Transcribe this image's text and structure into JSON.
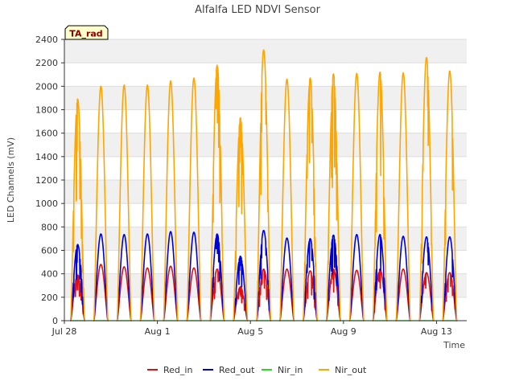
{
  "chart_data": {
    "type": "line",
    "title": "Alfalfa LED NDVI Sensor",
    "xlabel": "Time",
    "ylabel": "LED Channels (mV)",
    "badge": "TA_rad",
    "xlim": [
      0,
      17.3
    ],
    "ylim": [
      0,
      2400
    ],
    "yticks": [
      0,
      200,
      400,
      600,
      800,
      1000,
      1200,
      1400,
      1600,
      1800,
      2000,
      2200,
      2400
    ],
    "xticks": [
      {
        "label": "Jul 28",
        "day": 0
      },
      {
        "label": "Aug 1",
        "day": 4
      },
      {
        "label": "Aug 5",
        "day": 8
      },
      {
        "label": "Aug 9",
        "day": 12
      },
      {
        "label": "Aug 13",
        "day": 16
      }
    ],
    "day_peaks": [
      {
        "day": 0,
        "nir_out": 1890,
        "red_out": 650,
        "red_in": 390,
        "nir_in": 0
      },
      {
        "day": 1,
        "nir_out": 2000,
        "red_out": 740,
        "red_in": 480,
        "nir_in": 0
      },
      {
        "day": 2,
        "nir_out": 2010,
        "red_out": 735,
        "red_in": 460,
        "nir_in": 0
      },
      {
        "day": 3,
        "nir_out": 2010,
        "red_out": 740,
        "red_in": 450,
        "nir_in": 0
      },
      {
        "day": 4,
        "nir_out": 2045,
        "red_out": 760,
        "red_in": 465,
        "nir_in": 0
      },
      {
        "day": 5,
        "nir_out": 2070,
        "red_out": 755,
        "red_in": 450,
        "nir_in": 0
      },
      {
        "day": 6,
        "nir_out": 2180,
        "red_out": 740,
        "red_in": 440,
        "nir_in": 0
      },
      {
        "day": 7,
        "nir_out": 1730,
        "red_out": 550,
        "red_in": 290,
        "nir_in": 0
      },
      {
        "day": 8,
        "nir_out": 2310,
        "red_out": 770,
        "red_in": 440,
        "nir_in": 0
      },
      {
        "day": 9,
        "nir_out": 2060,
        "red_out": 705,
        "red_in": 440,
        "nir_in": 0
      },
      {
        "day": 10,
        "nir_out": 2070,
        "red_out": 700,
        "red_in": 425,
        "nir_in": 0
      },
      {
        "day": 11,
        "nir_out": 2105,
        "red_out": 730,
        "red_in": 440,
        "nir_in": 0
      },
      {
        "day": 12,
        "nir_out": 2110,
        "red_out": 735,
        "red_in": 430,
        "nir_in": 0
      },
      {
        "day": 13,
        "nir_out": 2120,
        "red_out": 735,
        "red_in": 440,
        "nir_in": 0
      },
      {
        "day": 14,
        "nir_out": 2115,
        "red_out": 720,
        "red_in": 440,
        "nir_in": 0
      },
      {
        "day": 15,
        "nir_out": 2245,
        "red_out": 715,
        "red_in": 410,
        "nir_in": 0
      },
      {
        "day": 16,
        "nir_out": 2130,
        "red_out": 715,
        "red_in": 410,
        "nir_in": 0
      }
    ],
    "series": [
      {
        "name": "Red_in",
        "key": "red_in",
        "color": "#dd1111"
      },
      {
        "name": "Red_out",
        "key": "red_out",
        "color": "#0000dd"
      },
      {
        "name": "Nir_in",
        "key": "nir_in",
        "color": "#22dd22"
      },
      {
        "name": "Nir_out",
        "key": "nir_out",
        "color": "#ffa500"
      }
    ],
    "grid": true,
    "legend_position": "bottom"
  }
}
